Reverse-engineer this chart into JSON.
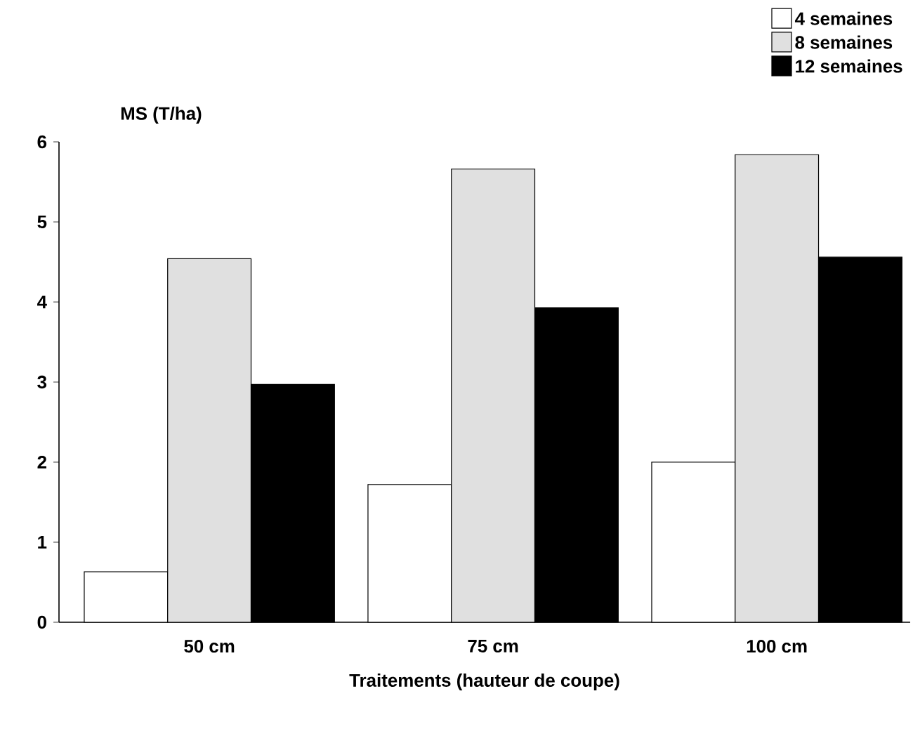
{
  "chart_data": {
    "type": "bar",
    "ylabel": "MS (T/ha)",
    "xlabel": "Traitements (hauteur de coupe)",
    "categories": [
      "50 cm",
      "75 cm",
      "100 cm"
    ],
    "series": [
      {
        "name": "4 semaines",
        "color": "#ffffff",
        "values": [
          0.63,
          1.72,
          2.0
        ]
      },
      {
        "name": "8 semaines",
        "color": "#e0e0e0",
        "values": [
          4.54,
          5.66,
          5.84
        ]
      },
      {
        "name": "12 semaines",
        "color": "#000000",
        "values": [
          2.97,
          3.93,
          4.56
        ]
      }
    ],
    "ylim": [
      0,
      6
    ],
    "yticks": [
      0,
      1,
      2,
      3,
      4,
      5,
      6
    ],
    "grid": false,
    "legend": "top right"
  }
}
